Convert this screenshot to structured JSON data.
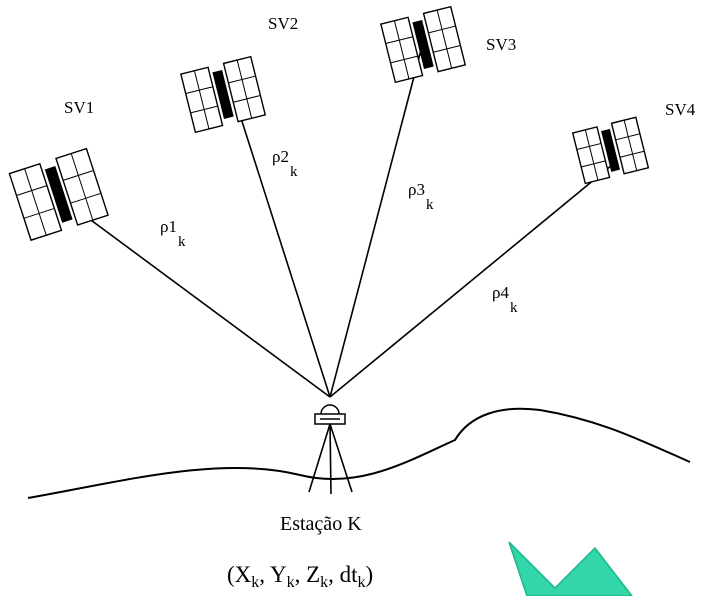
{
  "diagram": {
    "satellites": [
      {
        "label": "SV1"
      },
      {
        "label": "SV2"
      },
      {
        "label": "SV3"
      },
      {
        "label": "SV4"
      }
    ],
    "ranges": [
      {
        "symbol": "ρ",
        "index": "1",
        "sub": "k"
      },
      {
        "symbol": "ρ",
        "index": "2",
        "sub": "k"
      },
      {
        "symbol": "ρ",
        "index": "3",
        "sub": "k"
      },
      {
        "symbol": "ρ",
        "index": "4",
        "sub": "k"
      }
    ],
    "station": {
      "label": "Estação K"
    },
    "coordinates": {
      "open": "(",
      "x": "X",
      "x_sub": "k",
      "sep1": ", ",
      "y": "Y",
      "y_sub": "k",
      "sep2": ", ",
      "z": "Z",
      "z_sub": "k",
      "sep3": ", ",
      "dt": "dt",
      "dt_sub": "k",
      "close": ")"
    },
    "colors": {
      "line": "#000000",
      "satellite_body": "#000000",
      "arrow_fill": "#33d6a8",
      "arrow_stroke": "#1bb68a"
    }
  }
}
